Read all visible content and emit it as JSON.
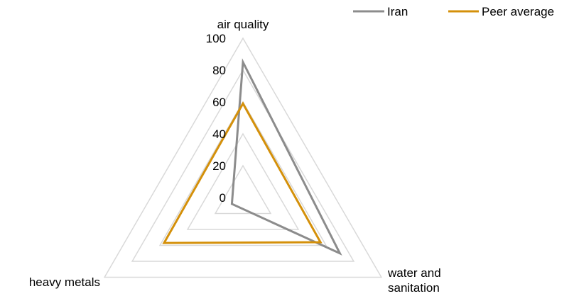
{
  "chart_data": {
    "type": "radar",
    "title": "",
    "categories": [
      "air quality",
      "water and sanitation",
      "heavy metals"
    ],
    "category_lines": [
      [
        "air quality"
      ],
      [
        "water and",
        "sanitation"
      ],
      [
        "heavy metals"
      ]
    ],
    "rlim": [
      0,
      100
    ],
    "ticks": [
      "0",
      "20",
      "40",
      "60",
      "80",
      "100"
    ],
    "tick_values": [
      0,
      20,
      40,
      60,
      80,
      100
    ],
    "grid": true,
    "legend_position": "top-right",
    "series": [
      {
        "name": "Iran",
        "color": "#8c8c8c",
        "values": [
          85,
          70,
          8
        ]
      },
      {
        "name": "Peer average",
        "color": "#d4900a",
        "values": [
          59,
          56,
          57
        ]
      }
    ],
    "grid_color": "#d9d9d9"
  }
}
